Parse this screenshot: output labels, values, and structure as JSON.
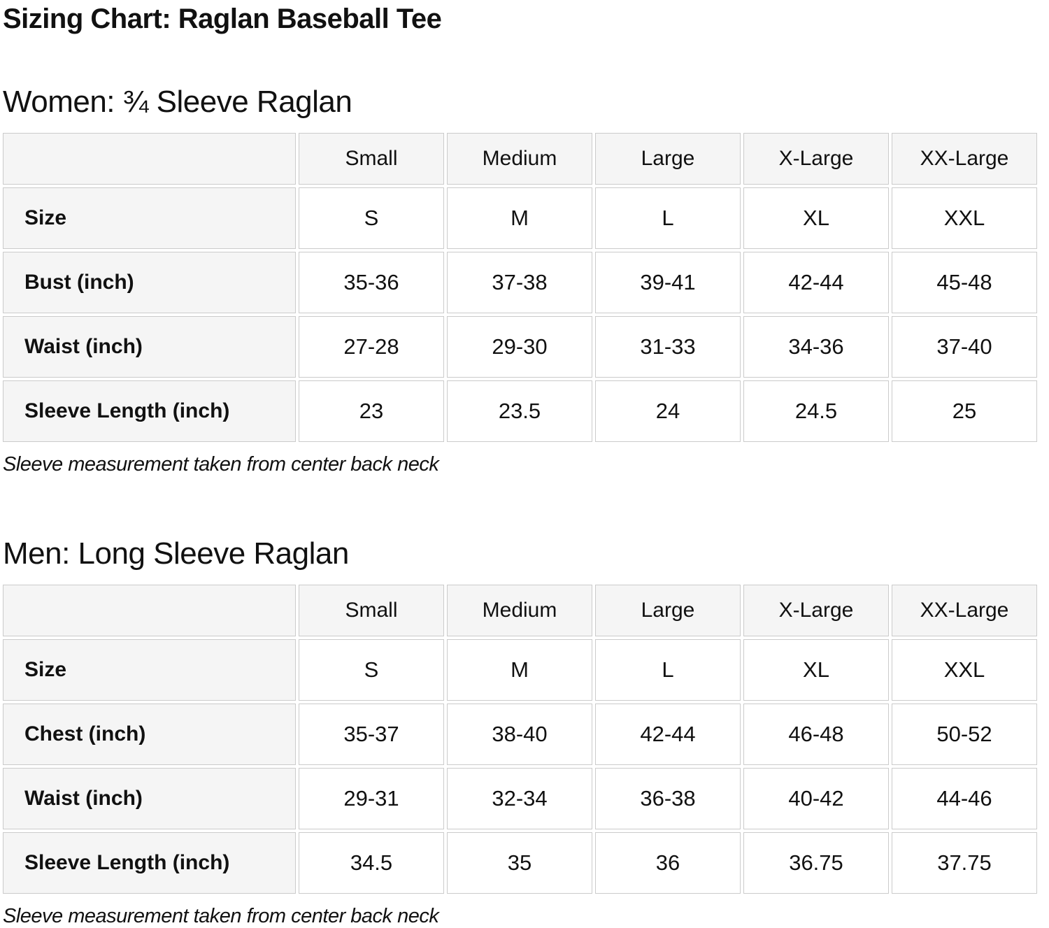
{
  "page": {
    "title": "Sizing Chart: Raglan Baseball Tee"
  },
  "colors": {
    "text": "#111111",
    "cell_border": "#cbcbcb",
    "shaded_cell_bg": "#f5f5f5",
    "value_cell_bg": "#ffffff",
    "page_bg": "#ffffff"
  },
  "tables": [
    {
      "heading": "Women: ¾ Sleeve Raglan",
      "columns": [
        "Small",
        "Medium",
        "Large",
        "X-Large",
        "XX-Large"
      ],
      "rows": [
        {
          "label": "Size",
          "values": [
            "S",
            "M",
            "L",
            "XL",
            "XXL"
          ]
        },
        {
          "label": "Bust (inch)",
          "values": [
            "35-36",
            "37-38",
            "39-41",
            "42-44",
            "45-48"
          ]
        },
        {
          "label": "Waist (inch)",
          "values": [
            "27-28",
            "29-30",
            "31-33",
            "34-36",
            "37-40"
          ]
        },
        {
          "label": "Sleeve Length (inch)",
          "values": [
            "23",
            "23.5",
            "24",
            "24.5",
            "25"
          ]
        }
      ],
      "note": "Sleeve measurement taken from center back neck"
    },
    {
      "heading": "Men: Long Sleeve Raglan",
      "columns": [
        "Small",
        "Medium",
        "Large",
        "X-Large",
        "XX-Large"
      ],
      "rows": [
        {
          "label": "Size",
          "values": [
            "S",
            "M",
            "L",
            "XL",
            "XXL"
          ]
        },
        {
          "label": "Chest (inch)",
          "values": [
            "35-37",
            "38-40",
            "42-44",
            "46-48",
            "50-52"
          ]
        },
        {
          "label": "Waist (inch)",
          "values": [
            "29-31",
            "32-34",
            "36-38",
            "40-42",
            "44-46"
          ]
        },
        {
          "label": "Sleeve Length (inch)",
          "values": [
            "34.5",
            "35",
            "36",
            "36.75",
            "37.75"
          ]
        }
      ],
      "note": "Sleeve measurement taken from center back neck"
    }
  ]
}
